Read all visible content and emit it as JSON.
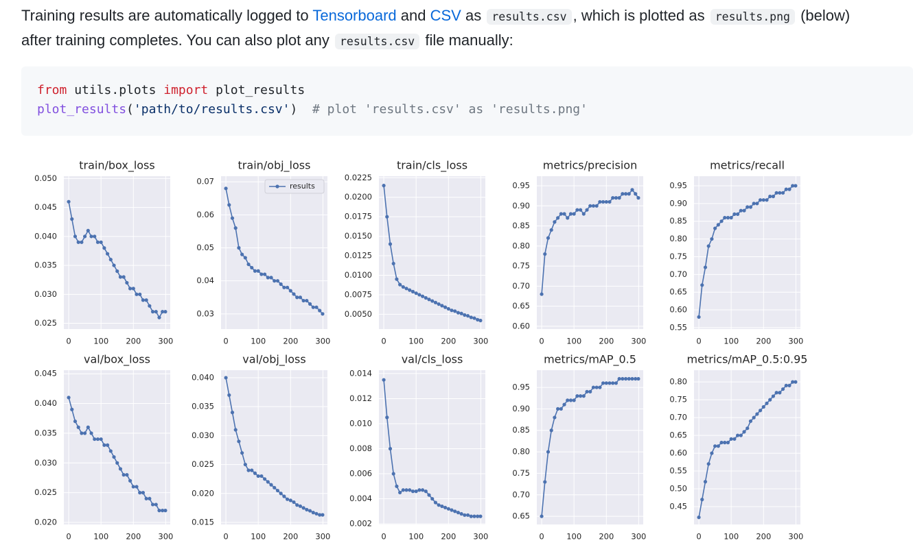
{
  "paragraph": {
    "lines": [
      [
        "Training results are automatically logged to ",
        {
          "link": "Tensorboard"
        },
        " and ",
        {
          "link": "CSV"
        },
        " as ",
        {
          "code": "results.csv"
        },
        ", which is plotted as ",
        {
          "code": "results.png"
        },
        " (below)"
      ],
      [
        "after training completes. You can also plot any ",
        {
          "code": "results.csv"
        },
        " file manually:"
      ]
    ]
  },
  "code": {
    "lines": [
      [
        {
          "text": "from",
          "color": "#cf222e"
        },
        {
          "text": " utils.plots ",
          "color": "#1f2328"
        },
        {
          "text": "import",
          "color": "#cf222e"
        },
        {
          "text": " plot_results",
          "color": "#1f2328"
        }
      ],
      [
        {
          "text": "plot_results",
          "color": "#8250df"
        },
        {
          "text": "(",
          "color": "#1f2328"
        },
        {
          "text": "'path/to/results.csv'",
          "color": "#0a3069"
        },
        {
          "text": ")  ",
          "color": "#1f2328"
        },
        {
          "text": "# plot 'results.csv' as 'results.png'",
          "color": "#6e7781"
        }
      ]
    ]
  },
  "chart_data": [
    {
      "type": "line",
      "title": "train/box_loss",
      "grid": true,
      "color": "#4c72b0",
      "x": [
        0,
        10,
        20,
        30,
        40,
        50,
        60,
        70,
        80,
        90,
        100,
        110,
        120,
        130,
        140,
        150,
        160,
        170,
        180,
        190,
        200,
        210,
        220,
        230,
        240,
        250,
        260,
        270,
        280,
        290,
        299
      ],
      "values": [
        0.046,
        0.043,
        0.04,
        0.039,
        0.039,
        0.04,
        0.041,
        0.04,
        0.04,
        0.039,
        0.039,
        0.038,
        0.037,
        0.036,
        0.035,
        0.034,
        0.033,
        0.033,
        0.032,
        0.031,
        0.031,
        0.03,
        0.03,
        0.029,
        0.029,
        0.028,
        0.027,
        0.027,
        0.026,
        0.027,
        0.027
      ],
      "xlim": [
        -15,
        314
      ],
      "xticks": [
        0,
        100,
        200,
        300
      ],
      "ylim": [
        0.024,
        0.0504
      ],
      "yticks": [
        {
          "value": 0.025,
          "label": "0.025"
        },
        {
          "value": 0.03,
          "label": "0.030"
        },
        {
          "value": 0.035,
          "label": "0.035"
        },
        {
          "value": 0.04,
          "label": "0.040"
        },
        {
          "value": 0.045,
          "label": "0.045"
        },
        {
          "value": 0.05,
          "label": "0.050"
        }
      ]
    },
    {
      "type": "line",
      "title": "train/obj_loss",
      "grid": true,
      "legend": "upper right",
      "x": [
        0,
        10,
        20,
        30,
        40,
        50,
        60,
        70,
        80,
        90,
        100,
        110,
        120,
        130,
        140,
        150,
        160,
        170,
        180,
        190,
        200,
        210,
        220,
        230,
        240,
        250,
        260,
        270,
        280,
        290,
        299
      ],
      "series": [
        {
          "name": "results",
          "color": "#4c72b0",
          "values": [
            0.068,
            0.063,
            0.059,
            0.056,
            0.05,
            0.048,
            0.047,
            0.045,
            0.044,
            0.043,
            0.043,
            0.042,
            0.042,
            0.041,
            0.041,
            0.04,
            0.04,
            0.039,
            0.038,
            0.038,
            0.037,
            0.036,
            0.035,
            0.035,
            0.034,
            0.034,
            0.033,
            0.032,
            0.032,
            0.031,
            0.03
          ]
        }
      ],
      "xlim": [
        -15,
        314
      ],
      "xticks": [
        0,
        100,
        200,
        300
      ],
      "ylim": [
        0.0254,
        0.0717
      ],
      "yticks": [
        0.03,
        0.04,
        0.05,
        0.06,
        0.07
      ]
    },
    {
      "type": "line",
      "title": "train/cls_loss",
      "grid": true,
      "color": "#4c72b0",
      "x": [
        0,
        10,
        20,
        30,
        40,
        50,
        60,
        70,
        80,
        90,
        100,
        110,
        120,
        130,
        140,
        150,
        160,
        170,
        180,
        190,
        200,
        210,
        220,
        230,
        240,
        250,
        260,
        270,
        280,
        290,
        299
      ],
      "values": [
        0.0215,
        0.0175,
        0.014,
        0.0115,
        0.0095,
        0.0088,
        0.0085,
        0.0083,
        0.0081,
        0.0079,
        0.0077,
        0.0075,
        0.0073,
        0.0071,
        0.0069,
        0.0067,
        0.0065,
        0.0063,
        0.0061,
        0.0059,
        0.0057,
        0.0055,
        0.0054,
        0.0052,
        0.0051,
        0.0049,
        0.0048,
        0.0046,
        0.0045,
        0.0043,
        0.0042
      ],
      "xlim": [
        -15,
        314
      ],
      "xticks": [
        0,
        100,
        200,
        300
      ],
      "ylim": [
        0.0031,
        0.0227
      ],
      "yticks": [
        {
          "value": 0.005,
          "label": "0.0050"
        },
        0.0075,
        {
          "value": 0.01,
          "label": "0.0100"
        },
        0.0125,
        {
          "value": 0.015,
          "label": "0.0150"
        },
        0.0175,
        {
          "value": 0.02,
          "label": "0.0200"
        },
        0.0225
      ]
    },
    {
      "type": "line",
      "title": "metrics/precision",
      "grid": true,
      "color": "#4c72b0",
      "x": [
        0,
        10,
        20,
        30,
        40,
        50,
        60,
        70,
        80,
        90,
        100,
        110,
        120,
        130,
        140,
        150,
        160,
        170,
        180,
        190,
        200,
        210,
        220,
        230,
        240,
        250,
        260,
        270,
        280,
        290,
        299
      ],
      "values": [
        0.68,
        0.78,
        0.82,
        0.84,
        0.86,
        0.87,
        0.88,
        0.88,
        0.87,
        0.88,
        0.88,
        0.89,
        0.89,
        0.88,
        0.89,
        0.9,
        0.9,
        0.9,
        0.91,
        0.91,
        0.91,
        0.91,
        0.92,
        0.92,
        0.92,
        0.93,
        0.93,
        0.93,
        0.94,
        0.93,
        0.92
      ],
      "xlim": [
        -15,
        314
      ],
      "xticks": [
        0,
        100,
        200,
        300
      ],
      "ylim": [
        0.593,
        0.974
      ],
      "yticks": [
        {
          "value": 0.6,
          "label": "0.60"
        },
        0.65,
        {
          "value": 0.7,
          "label": "0.70"
        },
        0.75,
        {
          "value": 0.8,
          "label": "0.80"
        },
        0.85,
        {
          "value": 0.9,
          "label": "0.90"
        },
        0.95
      ]
    },
    {
      "type": "line",
      "title": "metrics/recall",
      "grid": true,
      "color": "#4c72b0",
      "x": [
        0,
        10,
        20,
        30,
        40,
        50,
        60,
        70,
        80,
        90,
        100,
        110,
        120,
        130,
        140,
        150,
        160,
        170,
        180,
        190,
        200,
        210,
        220,
        230,
        240,
        250,
        260,
        270,
        280,
        290,
        299
      ],
      "values": [
        0.58,
        0.67,
        0.72,
        0.78,
        0.8,
        0.83,
        0.84,
        0.85,
        0.86,
        0.86,
        0.86,
        0.87,
        0.87,
        0.88,
        0.88,
        0.89,
        0.89,
        0.9,
        0.9,
        0.91,
        0.91,
        0.91,
        0.92,
        0.92,
        0.93,
        0.93,
        0.93,
        0.94,
        0.94,
        0.95,
        0.95
      ],
      "xlim": [
        -15,
        314
      ],
      "xticks": [
        0,
        100,
        200,
        300
      ],
      "ylim": [
        0.546,
        0.977
      ],
      "yticks": [
        0.55,
        {
          "value": 0.6,
          "label": "0.60"
        },
        0.65,
        {
          "value": 0.7,
          "label": "0.70"
        },
        0.75,
        {
          "value": 0.8,
          "label": "0.80"
        },
        0.85,
        {
          "value": 0.9,
          "label": "0.90"
        },
        0.95
      ]
    },
    {
      "type": "line",
      "title": "val/box_loss",
      "grid": true,
      "color": "#4c72b0",
      "x": [
        0,
        10,
        20,
        30,
        40,
        50,
        60,
        70,
        80,
        90,
        100,
        110,
        120,
        130,
        140,
        150,
        160,
        170,
        180,
        190,
        200,
        210,
        220,
        230,
        240,
        250,
        260,
        270,
        280,
        290,
        299
      ],
      "values": [
        0.041,
        0.039,
        0.037,
        0.036,
        0.035,
        0.035,
        0.036,
        0.035,
        0.034,
        0.034,
        0.034,
        0.033,
        0.033,
        0.032,
        0.031,
        0.03,
        0.029,
        0.028,
        0.028,
        0.027,
        0.026,
        0.026,
        0.025,
        0.025,
        0.024,
        0.024,
        0.023,
        0.023,
        0.022,
        0.022,
        0.022
      ],
      "xlim": [
        -15,
        314
      ],
      "xticks": [
        0,
        100,
        200,
        300
      ],
      "ylim": [
        0.01965,
        0.0456
      ],
      "yticks": [
        {
          "value": 0.02,
          "label": "0.020"
        },
        0.025,
        {
          "value": 0.03,
          "label": "0.030"
        },
        0.035,
        {
          "value": 0.04,
          "label": "0.040"
        },
        0.045
      ]
    },
    {
      "type": "line",
      "title": "val/obj_loss",
      "grid": true,
      "color": "#4c72b0",
      "x": [
        0,
        10,
        20,
        30,
        40,
        50,
        60,
        70,
        80,
        90,
        100,
        110,
        120,
        130,
        140,
        150,
        160,
        170,
        180,
        190,
        200,
        210,
        220,
        230,
        240,
        250,
        260,
        270,
        280,
        290,
        299
      ],
      "values": [
        0.04,
        0.037,
        0.034,
        0.031,
        0.029,
        0.027,
        0.025,
        0.024,
        0.024,
        0.0235,
        0.023,
        0.023,
        0.0225,
        0.022,
        0.0215,
        0.021,
        0.0205,
        0.02,
        0.0195,
        0.019,
        0.0188,
        0.0185,
        0.018,
        0.0178,
        0.0175,
        0.0172,
        0.017,
        0.0167,
        0.0165,
        0.0163,
        0.0163
      ],
      "xlim": [
        -15,
        314
      ],
      "xticks": [
        0,
        100,
        200,
        300
      ],
      "ylim": [
        0.01464,
        0.0413
      ],
      "yticks": [
        0.015,
        {
          "value": 0.02,
          "label": "0.020"
        },
        0.025,
        {
          "value": 0.03,
          "label": "0.030"
        },
        0.035,
        {
          "value": 0.04,
          "label": "0.040"
        }
      ]
    },
    {
      "type": "line",
      "title": "val/cls_loss",
      "grid": true,
      "color": "#4c72b0",
      "x": [
        0,
        10,
        20,
        30,
        40,
        50,
        60,
        70,
        80,
        90,
        100,
        110,
        120,
        130,
        140,
        150,
        160,
        170,
        180,
        190,
        200,
        210,
        220,
        230,
        240,
        250,
        260,
        270,
        280,
        290,
        299
      ],
      "values": [
        0.0135,
        0.0105,
        0.008,
        0.006,
        0.005,
        0.0045,
        0.0047,
        0.0047,
        0.0047,
        0.0046,
        0.0046,
        0.0047,
        0.0047,
        0.0046,
        0.0043,
        0.004,
        0.0037,
        0.0035,
        0.0034,
        0.0033,
        0.0032,
        0.0031,
        0.003,
        0.0029,
        0.0028,
        0.0027,
        0.0027,
        0.0026,
        0.0026,
        0.0026,
        0.0026
      ],
      "xlim": [
        -15,
        314
      ],
      "xticks": [
        0,
        100,
        200,
        300
      ],
      "ylim": [
        0.00195,
        0.01427
      ],
      "yticks": [
        0.002,
        0.004,
        0.006,
        0.008,
        {
          "value": 0.01,
          "label": "0.010"
        },
        0.012,
        0.014
      ]
    },
    {
      "type": "line",
      "title": "metrics/mAP_0.5",
      "grid": true,
      "color": "#4c72b0",
      "x": [
        0,
        10,
        20,
        30,
        40,
        50,
        60,
        70,
        80,
        90,
        100,
        110,
        120,
        130,
        140,
        150,
        160,
        170,
        180,
        190,
        200,
        210,
        220,
        230,
        240,
        250,
        260,
        270,
        280,
        290,
        299
      ],
      "values": [
        0.65,
        0.73,
        0.8,
        0.85,
        0.88,
        0.9,
        0.9,
        0.91,
        0.92,
        0.92,
        0.92,
        0.93,
        0.93,
        0.93,
        0.94,
        0.94,
        0.95,
        0.95,
        0.95,
        0.96,
        0.96,
        0.96,
        0.96,
        0.96,
        0.97,
        0.97,
        0.97,
        0.97,
        0.97,
        0.97,
        0.97
      ],
      "xlim": [
        -15,
        314
      ],
      "xticks": [
        0,
        100,
        200,
        300
      ],
      "ylim": [
        0.631,
        0.99
      ],
      "yticks": [
        0.65,
        {
          "value": 0.7,
          "label": "0.70"
        },
        0.75,
        {
          "value": 0.8,
          "label": "0.80"
        },
        0.85,
        {
          "value": 0.9,
          "label": "0.90"
        },
        0.95
      ]
    },
    {
      "type": "line",
      "title": "metrics/mAP_0.5:0.95",
      "grid": true,
      "color": "#4c72b0",
      "x": [
        0,
        10,
        20,
        30,
        40,
        50,
        60,
        70,
        80,
        90,
        100,
        110,
        120,
        130,
        140,
        150,
        160,
        170,
        180,
        190,
        200,
        210,
        220,
        230,
        240,
        250,
        260,
        270,
        280,
        290,
        299
      ],
      "values": [
        0.42,
        0.47,
        0.52,
        0.57,
        0.6,
        0.62,
        0.62,
        0.63,
        0.63,
        0.63,
        0.64,
        0.64,
        0.65,
        0.65,
        0.66,
        0.67,
        0.69,
        0.7,
        0.71,
        0.72,
        0.73,
        0.74,
        0.75,
        0.76,
        0.77,
        0.77,
        0.78,
        0.79,
        0.79,
        0.8,
        0.8
      ],
      "xlim": [
        -15,
        314
      ],
      "xticks": [
        0,
        100,
        200,
        300
      ],
      "ylim": [
        0.4,
        0.833
      ],
      "yticks": [
        0.45,
        {
          "value": 0.5,
          "label": "0.50"
        },
        0.55,
        {
          "value": 0.6,
          "label": "0.60"
        },
        0.65,
        {
          "value": 0.7,
          "label": "0.70"
        },
        0.75,
        {
          "value": 0.8,
          "label": "0.80"
        }
      ]
    }
  ]
}
